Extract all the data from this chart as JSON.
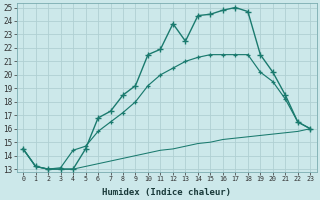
{
  "xlabel": "Humidex (Indice chaleur)",
  "bg_color": "#cce8ea",
  "grid_color": "#b0d0d3",
  "line_color": "#1a7a6e",
  "xlim": [
    -0.5,
    23.5
  ],
  "ylim": [
    12.8,
    25.3
  ],
  "xticks": [
    0,
    1,
    2,
    3,
    4,
    5,
    6,
    7,
    8,
    9,
    10,
    11,
    12,
    13,
    14,
    15,
    16,
    17,
    18,
    19,
    20,
    21,
    22,
    23
  ],
  "yticks": [
    13,
    14,
    15,
    16,
    17,
    18,
    19,
    20,
    21,
    22,
    23,
    24,
    25
  ],
  "line1_x": [
    0,
    1,
    2,
    3,
    4,
    5,
    6,
    7,
    8,
    9,
    10,
    11,
    12,
    13,
    14,
    15,
    16,
    17,
    18,
    19,
    20,
    21,
    22,
    23
  ],
  "line1_y": [
    14.5,
    13.2,
    13.0,
    13.0,
    13.0,
    14.5,
    16.8,
    17.3,
    18.5,
    19.2,
    21.5,
    21.9,
    23.8,
    22.5,
    24.4,
    24.5,
    24.8,
    25.0,
    24.7,
    21.5,
    20.2,
    18.5,
    16.5,
    16.0
  ],
  "line2_x": [
    0,
    1,
    2,
    3,
    4,
    5,
    6,
    7,
    8,
    9,
    10,
    11,
    12,
    13,
    14,
    15,
    16,
    17,
    18,
    19,
    20,
    21,
    22,
    23
  ],
  "line2_y": [
    14.5,
    13.2,
    13.0,
    13.1,
    14.4,
    14.7,
    15.8,
    16.5,
    17.2,
    18.0,
    19.2,
    20.0,
    20.5,
    21.0,
    21.3,
    21.5,
    21.5,
    21.5,
    21.5,
    20.2,
    19.5,
    18.2,
    16.5,
    16.0
  ],
  "line3_x": [
    0,
    1,
    2,
    3,
    4,
    5,
    6,
    7,
    8,
    9,
    10,
    11,
    12,
    13,
    14,
    15,
    16,
    17,
    18,
    19,
    20,
    21,
    22,
    23
  ],
  "line3_y": [
    14.5,
    13.2,
    13.0,
    13.0,
    13.0,
    13.2,
    13.4,
    13.6,
    13.8,
    14.0,
    14.2,
    14.4,
    14.5,
    14.7,
    14.9,
    15.0,
    15.2,
    15.3,
    15.4,
    15.5,
    15.6,
    15.7,
    15.8,
    16.0
  ]
}
